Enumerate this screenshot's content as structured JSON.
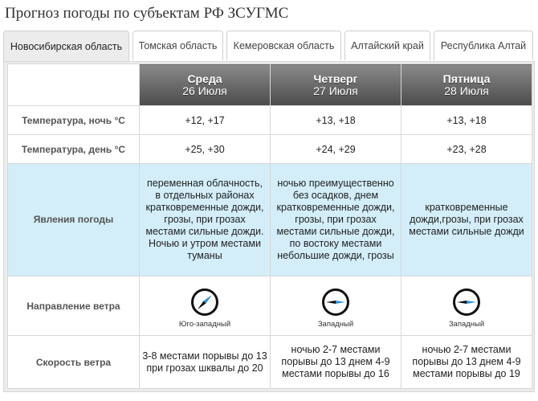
{
  "title": "Прогноз погоды по субъектам РФ ЗСУГМС",
  "tabs": [
    {
      "label": "Новосибирская область",
      "active": true
    },
    {
      "label": "Томская область",
      "active": false
    },
    {
      "label": "Кемеровская область",
      "active": false
    },
    {
      "label": "Алтайский край",
      "active": false
    },
    {
      "label": "Республика Алтай",
      "active": false
    }
  ],
  "days": [
    {
      "weekday": "Среда",
      "date": "26 Июля"
    },
    {
      "weekday": "Четверг",
      "date": "27 Июля"
    },
    {
      "weekday": "Пятница",
      "date": "28 Июля"
    }
  ],
  "rows": {
    "temp_night": {
      "label": "Температура, ночь °C",
      "values": [
        "+12, +17",
        "+13, +18",
        "+13, +18"
      ]
    },
    "temp_day": {
      "label": "Температура, день °C",
      "values": [
        "+25, +30",
        "+24, +29",
        "+23, +28"
      ]
    },
    "phenomena": {
      "label": "Явления погоды",
      "values": [
        "переменная облачность, в отдельных районах кратковременные дожди, грозы, при грозах местами сильные дожди. Ночью и утром местами туманы",
        "ночью преимущественно без осадков, днем кратковременные дожди, грозы, при грозах местами сильные дожди, по востоку местами небольшие дожди, грозы",
        "кратковременные дожди,грозы, при грозах местами сильные дожди"
      ]
    },
    "wind_dir": {
      "label": "Направление ветра",
      "values": [
        {
          "text": "Юго-западный",
          "icon": "compass-southwest-icon"
        },
        {
          "text": "Западный",
          "icon": "compass-west-icon"
        },
        {
          "text": "Западный",
          "icon": "compass-west-icon"
        }
      ]
    },
    "wind_speed": {
      "label": "Скорость ветра",
      "values": [
        "3-8 местами порывы до 13 при грозах шквалы до 20",
        "ночью 2-7 местами порывы до 13 днем 4-9 местами порывы до 16",
        "ночью 2-7 местами порывы до 13 днем 4-9 местами порывы до 19"
      ]
    }
  },
  "colors": {
    "phenomena_bg": "#d3eef9",
    "header_dark": "#4b4b4b",
    "compass_accent": "#2a8fd6"
  }
}
